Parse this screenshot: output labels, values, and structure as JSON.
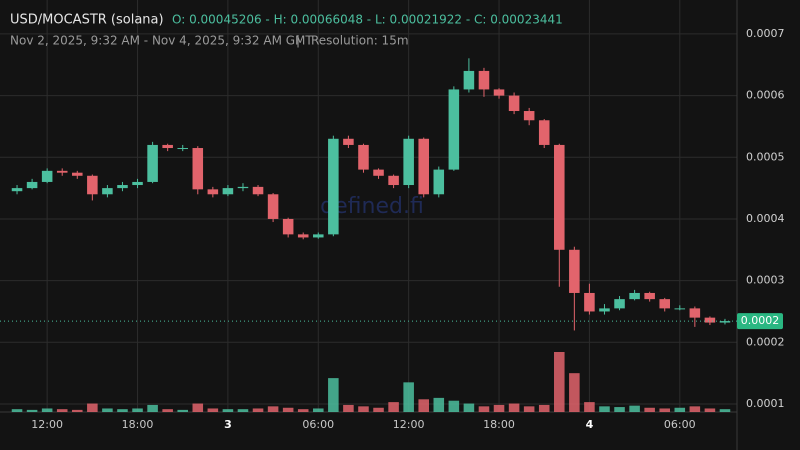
{
  "chart_data": {
    "type": "candlestick",
    "title": "USD/MOCASTR (solana)",
    "ohlc_summary": "O: 0.00045206 - H: 0.00066048 - L: 0.00021922 - C: 0.00023441",
    "subtitle": "Nov 2, 2025, 9:32 AM - Nov 4, 2025, 9:32 AM GMT",
    "resolution": "Resolution: 15m",
    "watermark": "defined.fi",
    "up_color": "#4cbf9f",
    "down_color": "#e2646c",
    "xlim": [
      9.533,
      57.533
    ],
    "xticks": [
      {
        "value": 12,
        "label": "12:00"
      },
      {
        "value": 18,
        "label": "18:00"
      },
      {
        "value": 24,
        "label": "3"
      },
      {
        "value": 30,
        "label": "06:00"
      },
      {
        "value": 36,
        "label": "12:00"
      },
      {
        "value": 42,
        "label": "18:00"
      },
      {
        "value": 48,
        "label": "4"
      },
      {
        "value": 54,
        "label": "06:00"
      }
    ],
    "ylim": [
      8.7e-05,
      0.000755
    ],
    "yticks": [
      0.0001,
      0.0002,
      0.0003,
      0.0004,
      0.0005,
      0.0006,
      0.0007
    ],
    "grid": true,
    "price_line": {
      "value": 0.00023441,
      "label": "0.0002"
    },
    "x": [
      10,
      11,
      12,
      13,
      14,
      15,
      16,
      17,
      18,
      19,
      20,
      21,
      22,
      23,
      24,
      25,
      26,
      27,
      28,
      29,
      30,
      31,
      32,
      33,
      34,
      35,
      36,
      37,
      38,
      39,
      40,
      41,
      42,
      43,
      44,
      45,
      46,
      47,
      48,
      49,
      50,
      51,
      52,
      53,
      54,
      55,
      56,
      57
    ],
    "open": [
      0.000445,
      0.00045,
      0.00046,
      0.000478,
      0.000475,
      0.00047,
      0.00044,
      0.00045,
      0.000455,
      0.00046,
      0.00052,
      0.000515,
      0.000515,
      0.000448,
      0.00044,
      0.00045,
      0.000452,
      0.00044,
      0.0004,
      0.000375,
      0.00037,
      0.000375,
      0.00053,
      0.00052,
      0.00048,
      0.00047,
      0.000455,
      0.00053,
      0.00044,
      0.00048,
      0.00061,
      0.00064,
      0.00061,
      0.0006,
      0.000575,
      0.00056,
      0.00052,
      0.00035,
      0.00028,
      0.00025,
      0.000255,
      0.00027,
      0.00028,
      0.00027,
      0.000255,
      0.000255,
      0.00024,
      0.000232
    ],
    "close": [
      0.00045,
      0.00046,
      0.000478,
      0.000475,
      0.00047,
      0.00044,
      0.00045,
      0.000455,
      0.00046,
      0.00052,
      0.000515,
      0.000515,
      0.000448,
      0.00044,
      0.00045,
      0.000452,
      0.00044,
      0.0004,
      0.000375,
      0.00037,
      0.000375,
      0.00053,
      0.00052,
      0.00048,
      0.00047,
      0.000455,
      0.00053,
      0.00044,
      0.00048,
      0.00061,
      0.00064,
      0.00061,
      0.0006,
      0.000575,
      0.00056,
      0.00052,
      0.00035,
      0.00028,
      0.00025,
      0.000255,
      0.00027,
      0.00028,
      0.00027,
      0.000255,
      0.000255,
      0.00024,
      0.000232,
      0.00023441
    ],
    "high": [
      0.000455,
      0.000465,
      0.000482,
      0.000482,
      0.000478,
      0.000472,
      0.000455,
      0.00046,
      0.000465,
      0.000525,
      0.000522,
      0.00052,
      0.000518,
      0.000452,
      0.000455,
      0.000458,
      0.000455,
      0.000442,
      0.000402,
      0.000378,
      0.000378,
      0.000535,
      0.000535,
      0.000522,
      0.000482,
      0.000472,
      0.000535,
      0.000532,
      0.000485,
      0.000615,
      0.00066048,
      0.000645,
      0.000612,
      0.000605,
      0.00058,
      0.000562,
      0.000522,
      0.000355,
      0.000295,
      0.000262,
      0.000275,
      0.000285,
      0.000282,
      0.000272,
      0.00026,
      0.000258,
      0.000242,
      0.000238
    ],
    "low": [
      0.00044,
      0.000448,
      0.000458,
      0.00047,
      0.000465,
      0.00043,
      0.000435,
      0.000445,
      0.00045,
      0.000458,
      0.00051,
      0.00051,
      0.00044,
      0.000435,
      0.000437,
      0.000445,
      0.000437,
      0.000395,
      0.00037,
      0.000367,
      0.000368,
      0.000372,
      0.000515,
      0.000475,
      0.000465,
      0.00045,
      0.00045,
      0.000435,
      0.000435,
      0.000478,
      0.000605,
      0.000598,
      0.000595,
      0.00057,
      0.000552,
      0.000515,
      0.00029,
      0.00021922,
      0.000245,
      0.000245,
      0.000252,
      0.000268,
      0.000266,
      0.00025,
      0.000252,
      0.000225,
      0.000228,
      0.000229
    ],
    "volume": [
      4,
      3,
      5,
      4,
      3,
      12,
      5,
      4,
      5,
      10,
      4,
      3,
      12,
      5,
      4,
      4,
      5,
      8,
      6,
      4,
      5,
      48,
      10,
      8,
      6,
      14,
      42,
      18,
      20,
      16,
      12,
      8,
      10,
      12,
      8,
      10,
      85,
      55,
      14,
      8,
      7,
      9,
      6,
      5,
      6,
      8,
      5,
      4
    ]
  }
}
